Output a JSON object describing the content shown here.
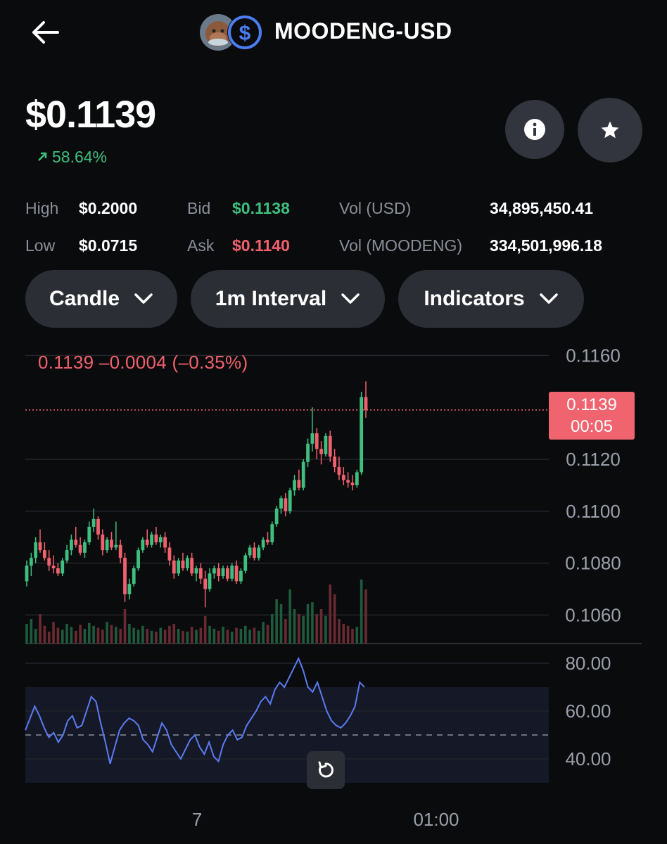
{
  "header": {
    "title": "MOODENG-USD",
    "back_icon": "arrow-left-icon",
    "coin_icons": [
      "moodeng-avatar-icon",
      "usd-coin-icon"
    ]
  },
  "price": {
    "current": "$0.1139",
    "change_pct": "58.64%",
    "change_icon": "arrow-up-right-icon"
  },
  "actions": {
    "info_icon": "info-icon",
    "favorite_icon": "star-icon"
  },
  "stats": {
    "high_label": "High",
    "high_value": "$0.2000",
    "low_label": "Low",
    "low_value": "$0.0715",
    "bid_label": "Bid",
    "bid_value": "$0.1138",
    "ask_label": "Ask",
    "ask_value": "$0.1140",
    "vol_usd_label": "Vol (USD)",
    "vol_usd_value": "34,895,450.41",
    "vol_base_label": "Vol (MOODENG)",
    "vol_base_value": "334,501,996.18"
  },
  "controls": {
    "chart_type": "Candle",
    "interval": "1m Interval",
    "indicators": "Indicators"
  },
  "chart_data": {
    "type": "candlestick",
    "overlay": "0.1139  –0.0004 (–0.35%)",
    "price_tag": "0.1139",
    "price_tag_time": "00:05",
    "yticks": [
      "0.1160",
      "0.1120",
      "0.1100",
      "0.1080",
      "0.1060"
    ],
    "ylim": [
      0.1049,
      0.1162
    ],
    "current_price": 0.1139,
    "rsi_ticks": [
      "80.00",
      "60.00",
      "40.00"
    ],
    "rsi_range": [
      30,
      80
    ],
    "rsi_band": [
      30,
      70
    ],
    "rsi_midline": 50,
    "x_labels": [
      "7",
      "01:00"
    ],
    "candles": [
      [
        0.1073,
        0.1081,
        0.1071,
        0.1079
      ],
      [
        0.1079,
        0.1084,
        0.1075,
        0.1082
      ],
      [
        0.1082,
        0.109,
        0.108,
        0.1088
      ],
      [
        0.1088,
        0.1093,
        0.1084,
        0.1085
      ],
      [
        0.1085,
        0.1088,
        0.1081,
        0.1082
      ],
      [
        0.1082,
        0.1085,
        0.1077,
        0.1079
      ],
      [
        0.1079,
        0.1083,
        0.1076,
        0.1078
      ],
      [
        0.1078,
        0.108,
        0.1075,
        0.1076
      ],
      [
        0.1076,
        0.1082,
        0.1075,
        0.1081
      ],
      [
        0.1081,
        0.1087,
        0.108,
        0.1085
      ],
      [
        0.1085,
        0.1091,
        0.1083,
        0.1089
      ],
      [
        0.1089,
        0.1094,
        0.1086,
        0.1087
      ],
      [
        0.1087,
        0.109,
        0.1083,
        0.1084
      ],
      [
        0.1084,
        0.1089,
        0.1082,
        0.1088
      ],
      [
        0.1088,
        0.1096,
        0.1087,
        0.1094
      ],
      [
        0.1094,
        0.1101,
        0.1092,
        0.1097
      ],
      [
        0.1097,
        0.1098,
        0.1089,
        0.1091
      ],
      [
        0.1091,
        0.1093,
        0.1083,
        0.1085
      ],
      [
        0.1085,
        0.109,
        0.1084,
        0.1089
      ],
      [
        0.1089,
        0.1092,
        0.1085,
        0.1086
      ],
      [
        0.1086,
        0.1096,
        0.1085,
        0.1087
      ],
      [
        0.1087,
        0.1089,
        0.108,
        0.1082
      ],
      [
        0.1082,
        0.1084,
        0.1065,
        0.1068
      ],
      [
        0.1068,
        0.1074,
        0.1066,
        0.1072
      ],
      [
        0.1072,
        0.1079,
        0.1071,
        0.1078
      ],
      [
        0.1078,
        0.1086,
        0.1077,
        0.1085
      ],
      [
        0.1085,
        0.109,
        0.1084,
        0.1089
      ],
      [
        0.1089,
        0.1093,
        0.1086,
        0.1087
      ],
      [
        0.1087,
        0.1092,
        0.1086,
        0.1091
      ],
      [
        0.1091,
        0.1094,
        0.1087,
        0.1088
      ],
      [
        0.1088,
        0.1091,
        0.1086,
        0.109
      ],
      [
        0.109,
        0.1092,
        0.1084,
        0.1086
      ],
      [
        0.1086,
        0.1088,
        0.1079,
        0.1081
      ],
      [
        0.1081,
        0.1083,
        0.1074,
        0.1076
      ],
      [
        0.1076,
        0.1082,
        0.1075,
        0.1081
      ],
      [
        0.1081,
        0.1084,
        0.1077,
        0.1078
      ],
      [
        0.1078,
        0.1083,
        0.1077,
        0.1082
      ],
      [
        0.1082,
        0.1084,
        0.1075,
        0.1076
      ],
      [
        0.1076,
        0.1079,
        0.1073,
        0.1078
      ],
      [
        0.1078,
        0.108,
        0.1072,
        0.1074
      ],
      [
        0.1074,
        0.1077,
        0.1063,
        0.107
      ],
      [
        0.107,
        0.1078,
        0.1069,
        0.1076
      ],
      [
        0.1076,
        0.1079,
        0.1074,
        0.1078
      ],
      [
        0.1078,
        0.108,
        0.1073,
        0.1075
      ],
      [
        0.1075,
        0.1079,
        0.1074,
        0.1078
      ],
      [
        0.1078,
        0.1079,
        0.1073,
        0.1074
      ],
      [
        0.1074,
        0.108,
        0.1073,
        0.1079
      ],
      [
        0.1079,
        0.1081,
        0.1072,
        0.1073
      ],
      [
        0.1073,
        0.1078,
        0.1072,
        0.1077
      ],
      [
        0.1077,
        0.1084,
        0.1076,
        0.1083
      ],
      [
        0.1083,
        0.1087,
        0.1082,
        0.1086
      ],
      [
        0.1086,
        0.1088,
        0.1081,
        0.1082
      ],
      [
        0.1082,
        0.1087,
        0.1081,
        0.1086
      ],
      [
        0.1086,
        0.109,
        0.1085,
        0.1089
      ],
      [
        0.1089,
        0.1092,
        0.1087,
        0.1088
      ],
      [
        0.1088,
        0.1096,
        0.1087,
        0.1095
      ],
      [
        0.1095,
        0.1102,
        0.1094,
        0.1101
      ],
      [
        0.1101,
        0.1106,
        0.1099,
        0.1105
      ],
      [
        0.1105,
        0.1107,
        0.1098,
        0.11
      ],
      [
        0.11,
        0.1109,
        0.1099,
        0.1108
      ],
      [
        0.1108,
        0.1114,
        0.1106,
        0.1112
      ],
      [
        0.1112,
        0.1116,
        0.1108,
        0.1109
      ],
      [
        0.1109,
        0.112,
        0.1108,
        0.1119
      ],
      [
        0.1119,
        0.1128,
        0.1117,
        0.1126
      ],
      [
        0.1126,
        0.114,
        0.1123,
        0.113
      ],
      [
        0.113,
        0.1132,
        0.112,
        0.1124
      ],
      [
        0.1124,
        0.1127,
        0.1118,
        0.1122
      ],
      [
        0.1122,
        0.113,
        0.1121,
        0.1129
      ],
      [
        0.1129,
        0.1131,
        0.1119,
        0.1121
      ],
      [
        0.1121,
        0.1124,
        0.1115,
        0.1117
      ],
      [
        0.1117,
        0.1121,
        0.1112,
        0.1114
      ],
      [
        0.1114,
        0.1117,
        0.111,
        0.1112
      ],
      [
        0.1112,
        0.1115,
        0.1109,
        0.1111
      ],
      [
        0.1111,
        0.1114,
        0.1108,
        0.111
      ],
      [
        0.111,
        0.1116,
        0.1109,
        0.1115
      ],
      [
        0.1115,
        0.1146,
        0.1114,
        0.1144
      ],
      [
        0.1144,
        0.115,
        0.1136,
        0.1139
      ]
    ],
    "volumes": [
      0.2,
      0.25,
      0.15,
      0.3,
      0.18,
      0.12,
      0.22,
      0.16,
      0.14,
      0.2,
      0.17,
      0.13,
      0.19,
      0.15,
      0.21,
      0.18,
      0.16,
      0.14,
      0.22,
      0.19,
      0.17,
      0.15,
      0.35,
      0.2,
      0.16,
      0.14,
      0.18,
      0.15,
      0.13,
      0.12,
      0.16,
      0.14,
      0.18,
      0.2,
      0.15,
      0.13,
      0.12,
      0.17,
      0.14,
      0.16,
      0.28,
      0.18,
      0.15,
      0.13,
      0.17,
      0.14,
      0.12,
      0.16,
      0.15,
      0.18,
      0.14,
      0.16,
      0.13,
      0.22,
      0.19,
      0.3,
      0.45,
      0.4,
      0.25,
      0.55,
      0.35,
      0.3,
      0.28,
      0.4,
      0.42,
      0.3,
      0.35,
      0.28,
      0.6,
      0.5,
      0.25,
      0.2,
      0.18,
      0.15,
      0.17,
      0.65,
      0.55
    ],
    "rsi": [
      52,
      57,
      62,
      58,
      53,
      49,
      51,
      47,
      50,
      56,
      58,
      53,
      54,
      60,
      66,
      64,
      55,
      47,
      38,
      45,
      52,
      55,
      57,
      56,
      54,
      48,
      46,
      43,
      49,
      55,
      52,
      46,
      43,
      40,
      44,
      48,
      50,
      45,
      42,
      47,
      41,
      39,
      46,
      50,
      52,
      48,
      49,
      54,
      57,
      60,
      64,
      66,
      63,
      69,
      72,
      70,
      74,
      78,
      82,
      77,
      70,
      68,
      72,
      66,
      60,
      56,
      54,
      53,
      55,
      58,
      62,
      72,
      70
    ]
  },
  "reset_icon": "reset-icon"
}
